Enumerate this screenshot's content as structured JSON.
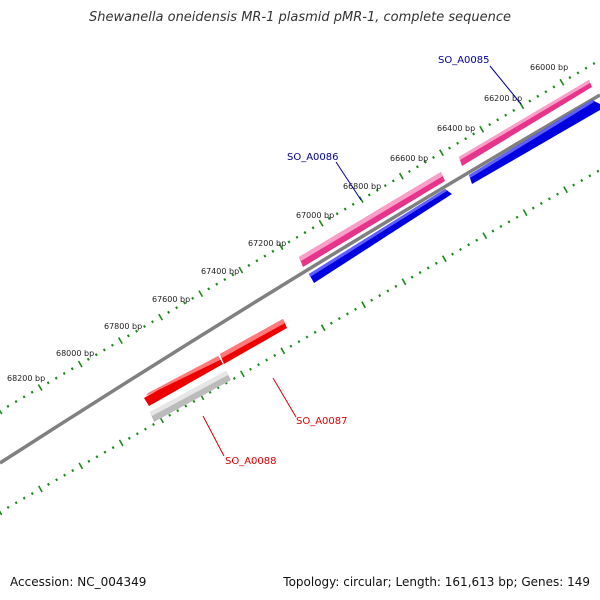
{
  "title": "Shewanella oneidensis MR-1 plasmid pMR-1, complete sequence",
  "footer": {
    "accession": "Accession: NC_004349",
    "summary": "Topology: circular; Length: 161,613 bp; Genes: 149"
  },
  "colors": {
    "backbone": "#808080",
    "ticks": "#1a8a1a",
    "forward_gene": "#e8338a",
    "forward_cds": "#0000e0",
    "reverse_gene": "#ee0000",
    "pseudo_gene": "#bbbbbb",
    "forward_label": "#000099",
    "reverse_label": "#dd0000"
  },
  "ticks": [
    {
      "label": "66000 bp"
    },
    {
      "label": "66200 bp"
    },
    {
      "label": "66400 bp"
    },
    {
      "label": "66600 bp"
    },
    {
      "label": "66800 bp"
    },
    {
      "label": "67000 bp"
    },
    {
      "label": "67200 bp"
    },
    {
      "label": "67400 bp"
    },
    {
      "label": "67600 bp"
    },
    {
      "label": "67800 bp"
    },
    {
      "label": "68000 bp"
    },
    {
      "label": "68200 bp"
    }
  ],
  "genes": [
    {
      "name": "SO_A0085",
      "strand": "forward"
    },
    {
      "name": "SO_A0086",
      "strand": "forward"
    },
    {
      "name": "SO_A0087",
      "strand": "reverse"
    },
    {
      "name": "SO_A0088",
      "strand": "reverse"
    }
  ]
}
